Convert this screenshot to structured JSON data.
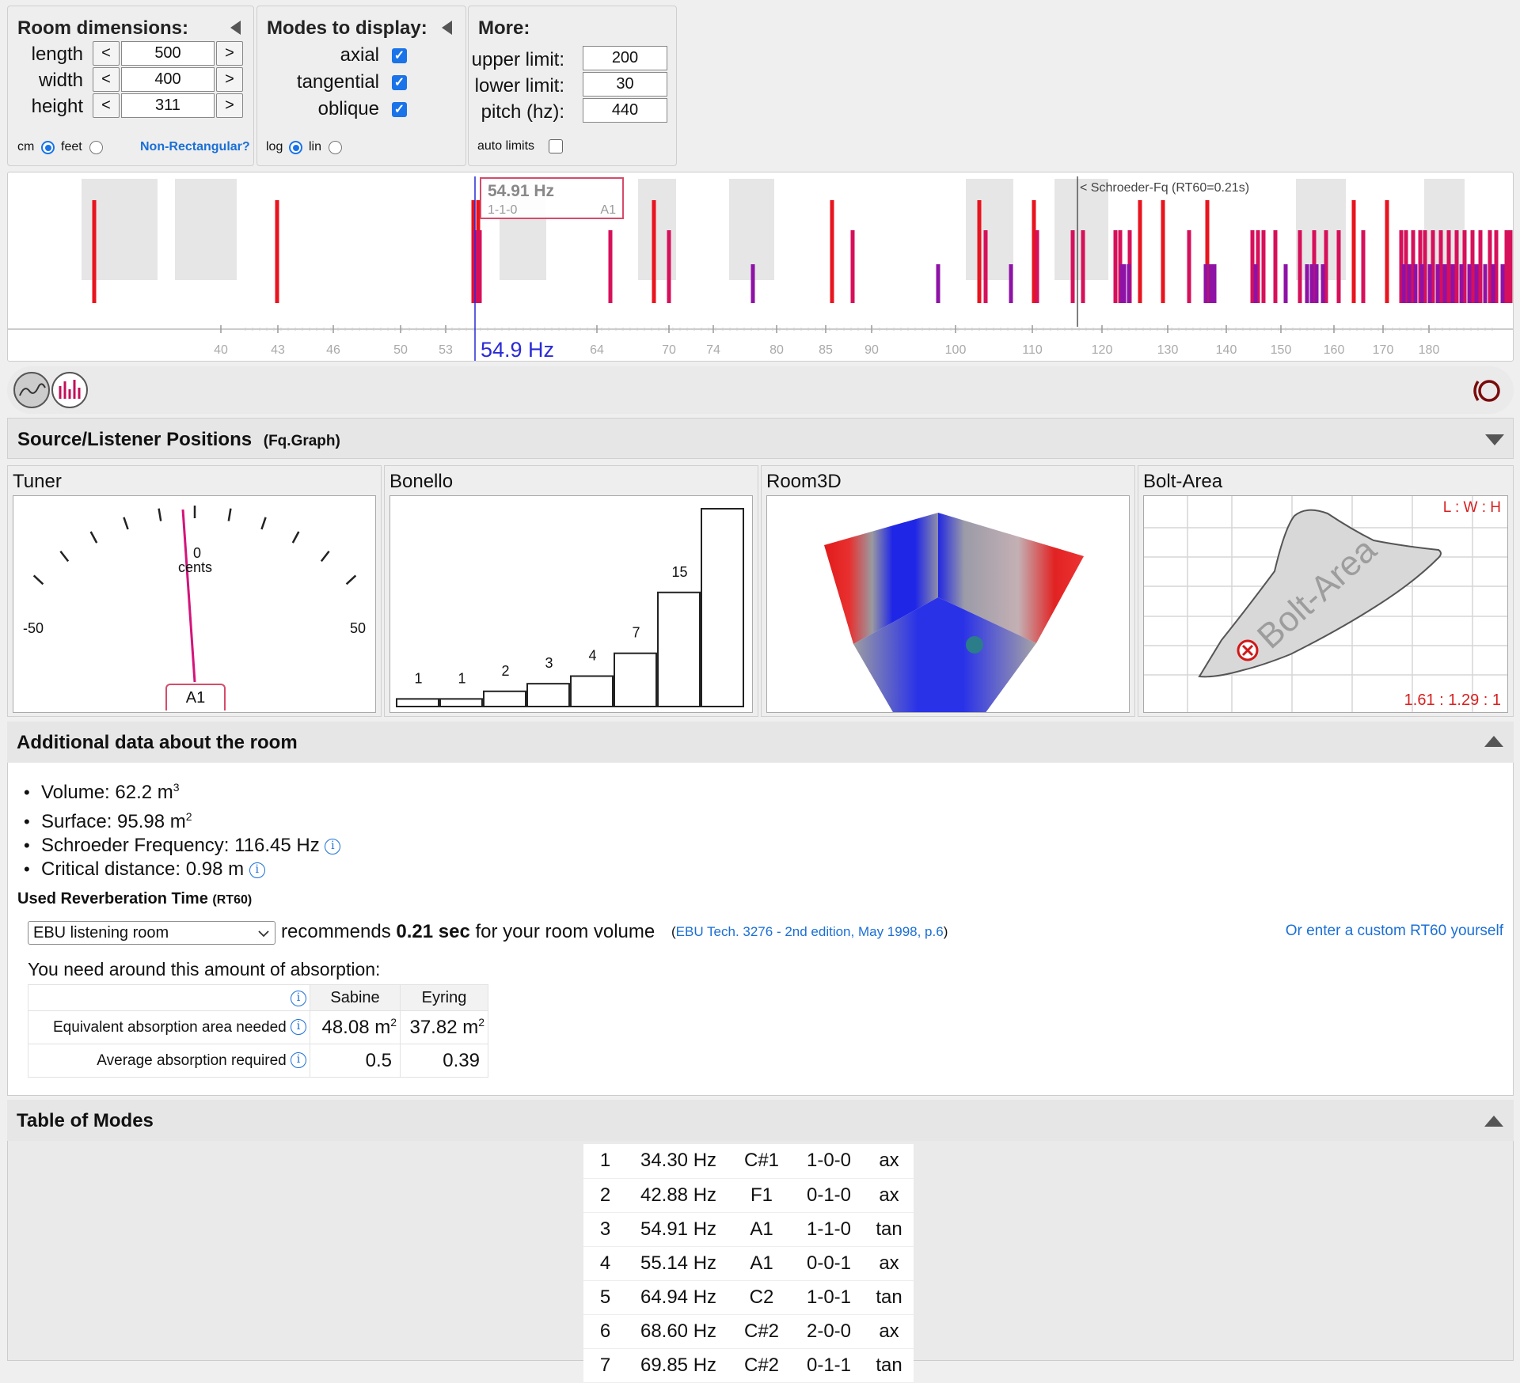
{
  "room": {
    "title": "Room dimensions:",
    "rows": [
      {
        "label": "length",
        "value": "500"
      },
      {
        "label": "width",
        "value": "400"
      },
      {
        "label": "height",
        "value": "311"
      }
    ],
    "dec": "<",
    "inc": ">",
    "unit_cm": "cm",
    "unit_feet": "feet",
    "nonrect": "Non-Rectangular?"
  },
  "modes_panel": {
    "title": "Modes to display:",
    "items": [
      {
        "label": "axial",
        "checked": true
      },
      {
        "label": "tangential",
        "checked": true
      },
      {
        "label": "oblique",
        "checked": true
      }
    ],
    "log": "log",
    "lin": "lin"
  },
  "more": {
    "title": "More:",
    "rows": [
      {
        "label": "upper limit:",
        "value": "200"
      },
      {
        "label": "lower limit:",
        "value": "30"
      },
      {
        "label": "pitch (hz):",
        "value": "440"
      }
    ],
    "auto": "auto limits"
  },
  "spectrum": {
    "tooltip_freq": "54.91 Hz",
    "tooltip_mode": "1-1-0",
    "tooltip_note": "A1",
    "schroeder": "< Schroeder-Fq (RT60=0.21s)",
    "cursor_label": "54.9 Hz",
    "ticks": [
      "40",
      "43",
      "46",
      "50",
      "53",
      "64",
      "70",
      "74",
      "80",
      "85",
      "90",
      "100",
      "110",
      "120",
      "130",
      "140",
      "150",
      "160",
      "170",
      "180"
    ],
    "colors": {
      "axial": "#e8141e",
      "tangential": "#d6105a",
      "oblique": "#8e12a6",
      "cursor": "#2a2ad6"
    }
  },
  "source_listener": {
    "title": "Source/Listener Positions",
    "sub": "(Fq.Graph)"
  },
  "views": {
    "tuner": {
      "title": "Tuner",
      "zero": "0",
      "cents": "cents",
      "minus": "-50",
      "plus": "50",
      "note": "A1"
    },
    "bonello": {
      "title": "Bonello",
      "bars": [
        1,
        1,
        2,
        3,
        4,
        7,
        15,
        26
      ]
    },
    "room3d": {
      "title": "Room3D"
    },
    "bolt": {
      "title": "Bolt-Area",
      "lwh": "L : W : H",
      "ratio": "1.61 : 1.29 : 1",
      "watermark": "Bolt-Area"
    }
  },
  "additional": {
    "title": "Additional data about the room",
    "volume": "Volume: 62.2 m",
    "volume_sup": "3",
    "surface": "Surface: 95.98 m",
    "surface_sup": "2",
    "schroeder": "Schroeder Frequency: 116.45 Hz",
    "critical": "Critical distance: 0.98 m",
    "reverb_title": "Used Reverberation Time",
    "reverb_sub": "(RT60)",
    "select": "EBU listening room",
    "rec_pre": "recommends",
    "rec_val": "0.21 sec",
    "rec_post": "for your room volume",
    "ref_open": "(",
    "ref": "EBU Tech. 3276 - 2nd edition, May 1998, p.6",
    "ref_close": ")",
    "custom": "Or enter a custom RT60 yourself",
    "need": "You need around this amount of absorption:",
    "sabine": "Sabine",
    "eyring": "Eyring",
    "row1_label": "Equivalent absorption area needed",
    "row1_sabine": "48.08 m",
    "row1_eyring": "37.82 m",
    "sq": "2",
    "row2_label": "Average absorption required",
    "row2_sabine": "0.5",
    "row2_eyring": "0.39"
  },
  "modes_table": {
    "title": "Table of Modes",
    "rows": [
      [
        "1",
        "34.30 Hz",
        "C#1",
        "1-0-0",
        "ax"
      ],
      [
        "2",
        "42.88 Hz",
        "F1",
        "0-1-0",
        "ax"
      ],
      [
        "3",
        "54.91 Hz",
        "A1",
        "1-1-0",
        "tan"
      ],
      [
        "4",
        "55.14 Hz",
        "A1",
        "0-0-1",
        "ax"
      ],
      [
        "5",
        "64.94 Hz",
        "C2",
        "1-0-1",
        "tan"
      ],
      [
        "6",
        "68.60 Hz",
        "C#2",
        "2-0-0",
        "ax"
      ],
      [
        "7",
        "69.85 Hz",
        "C#2",
        "0-1-1",
        "tan"
      ]
    ]
  }
}
